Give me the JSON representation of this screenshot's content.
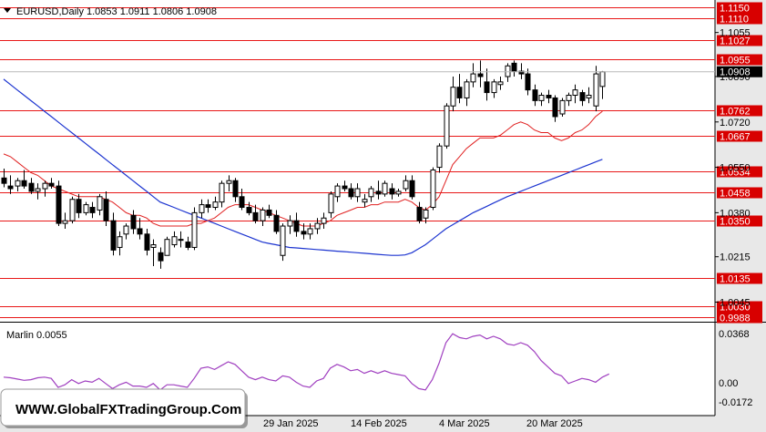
{
  "header": {
    "title": "EURUSD,Daily  1.0853 1.0911 1.0806 1.0908",
    "collapse_icon": "triangle-down-icon"
  },
  "price_axis": {
    "labels": [
      "1.1055",
      "1.0890",
      "1.0720",
      "1.0550",
      "1.0380",
      "1.0215",
      "1.0045"
    ],
    "current_price": "1.0908"
  },
  "levels": [
    {
      "label": "1.1150",
      "value": 1.115
    },
    {
      "label": "1.1110",
      "value": 1.111
    },
    {
      "label": "1.1027",
      "value": 1.1027
    },
    {
      "label": "1.0955",
      "value": 1.0955
    },
    {
      "label": "1.0762",
      "value": 1.0762
    },
    {
      "label": "1.0667",
      "value": 1.0667
    },
    {
      "label": "1.0534",
      "value": 1.0534
    },
    {
      "label": "1.0458",
      "value": 1.0458
    },
    {
      "label": "1.0350",
      "value": 1.035
    },
    {
      "label": "1.0135",
      "value": 1.0135
    },
    {
      "label": "1.0030",
      "value": 1.003
    },
    {
      "label": "0.9988",
      "value": 0.9988
    }
  ],
  "date_axis": {
    "labels": [
      "29 Jan 2025",
      "14 Feb 2025",
      "4 Mar 2025",
      "20 Mar 2025"
    ]
  },
  "indicator": {
    "title": "Marlin 0.0055",
    "axis_labels": [
      "0.0368",
      "0.00",
      "-0.0172"
    ]
  },
  "watermark": "WWW.GlobalFXTradingGroup.Com",
  "colors": {
    "background": "#ffffff",
    "axis_bg": "#e8e8e8",
    "level_line": "#e81818",
    "level_label_bg": "#d80000",
    "fast_ma": "#e02020",
    "slow_ma": "#1c34d0",
    "oscillator": "#a040c0",
    "candle": "#000000",
    "current_price_bg": "#000000"
  },
  "chart_data": {
    "type": "candlestick",
    "symbol": "EURUSD",
    "timeframe": "Daily",
    "last_bar": {
      "open": 1.0853,
      "high": 1.0911,
      "low": 1.0806,
      "close": 1.0908
    },
    "ylim": [
      0.9975,
      1.117
    ],
    "candles": [
      [
        1.051,
        1.0545,
        1.0475,
        1.049
      ],
      [
        1.048,
        1.052,
        1.045,
        1.047
      ],
      [
        1.048,
        1.051,
        1.046,
        1.05
      ],
      [
        1.05,
        1.054,
        1.047,
        1.048
      ],
      [
        1.049,
        1.051,
        1.045,
        1.046
      ],
      [
        1.046,
        1.049,
        1.043,
        1.047
      ],
      [
        1.047,
        1.05,
        1.044,
        1.049
      ],
      [
        1.049,
        1.051,
        1.047,
        1.048
      ],
      [
        1.048,
        1.05,
        1.033,
        1.034
      ],
      [
        1.034,
        1.038,
        1.032,
        1.035
      ],
      [
        1.035,
        1.044,
        1.034,
        1.043
      ],
      [
        1.043,
        1.045,
        1.036,
        1.038
      ],
      [
        1.038,
        1.042,
        1.037,
        1.041
      ],
      [
        1.04,
        1.042,
        1.036,
        1.038
      ],
      [
        1.039,
        1.045,
        1.037,
        1.044
      ],
      [
        1.043,
        1.046,
        1.033,
        1.035
      ],
      [
        1.035,
        1.038,
        1.022,
        1.024
      ],
      [
        1.025,
        1.031,
        1.022,
        1.029
      ],
      [
        1.03,
        1.034,
        1.028,
        1.033
      ],
      [
        1.037,
        1.039,
        1.03,
        1.032
      ],
      [
        1.032,
        1.036,
        1.028,
        1.03
      ],
      [
        1.03,
        1.032,
        1.022,
        1.024
      ],
      [
        1.025,
        1.028,
        1.018,
        1.026
      ],
      [
        1.023,
        1.025,
        1.017,
        1.02
      ],
      [
        1.022,
        1.029,
        1.022,
        1.028
      ],
      [
        1.026,
        1.031,
        1.025,
        1.029
      ],
      [
        1.028,
        1.031,
        1.025,
        1.028
      ],
      [
        1.027,
        1.029,
        1.024,
        1.025
      ],
      [
        1.025,
        1.04,
        1.024,
        1.038
      ],
      [
        1.038,
        1.043,
        1.036,
        1.041
      ],
      [
        1.041,
        1.043,
        1.038,
        1.04
      ],
      [
        1.04,
        1.044,
        1.039,
        1.042
      ],
      [
        1.042,
        1.05,
        1.04,
        1.049
      ],
      [
        1.049,
        1.052,
        1.046,
        1.05
      ],
      [
        1.05,
        1.051,
        1.042,
        1.044
      ],
      [
        1.044,
        1.047,
        1.039,
        1.04
      ],
      [
        1.04,
        1.042,
        1.037,
        1.038
      ],
      [
        1.038,
        1.041,
        1.034,
        1.035
      ],
      [
        1.035,
        1.04,
        1.033,
        1.039
      ],
      [
        1.039,
        1.041,
        1.036,
        1.037
      ],
      [
        1.037,
        1.039,
        1.03,
        1.031
      ],
      [
        1.022,
        1.034,
        1.02,
        1.033
      ],
      [
        1.033,
        1.037,
        1.03,
        1.035
      ],
      [
        1.035,
        1.038,
        1.029,
        1.031
      ],
      [
        1.031,
        1.034,
        1.028,
        1.03
      ],
      [
        1.03,
        1.034,
        1.028,
        1.032
      ],
      [
        1.032,
        1.036,
        1.03,
        1.034
      ],
      [
        1.034,
        1.038,
        1.032,
        1.036
      ],
      [
        1.038,
        1.046,
        1.036,
        1.045
      ],
      [
        1.044,
        1.049,
        1.042,
        1.048
      ],
      [
        1.048,
        1.05,
        1.046,
        1.047
      ],
      [
        1.047,
        1.049,
        1.043,
        1.044
      ],
      [
        1.044,
        1.049,
        1.042,
        1.047
      ],
      [
        1.042,
        1.045,
        1.04,
        1.043
      ],
      [
        1.044,
        1.048,
        1.042,
        1.047
      ],
      [
        1.046,
        1.05,
        1.043,
        1.045
      ],
      [
        1.045,
        1.05,
        1.044,
        1.049
      ],
      [
        1.047,
        1.049,
        1.043,
        1.045
      ],
      [
        1.045,
        1.047,
        1.044,
        1.046
      ],
      [
        1.047,
        1.052,
        1.046,
        1.05
      ],
      [
        1.05,
        1.052,
        1.043,
        1.044
      ],
      [
        1.04,
        1.042,
        1.034,
        1.035
      ],
      [
        1.036,
        1.04,
        1.034,
        1.039
      ],
      [
        1.04,
        1.055,
        1.039,
        1.054
      ],
      [
        1.055,
        1.064,
        1.053,
        1.063
      ],
      [
        1.063,
        1.079,
        1.062,
        1.078
      ],
      [
        1.078,
        1.089,
        1.076,
        1.085
      ],
      [
        1.085,
        1.09,
        1.079,
        1.081
      ],
      [
        1.081,
        1.088,
        1.078,
        1.087
      ],
      [
        1.087,
        1.094,
        1.085,
        1.09
      ],
      [
        1.09,
        1.095,
        1.085,
        1.089
      ],
      [
        1.087,
        1.092,
        1.08,
        1.083
      ],
      [
        1.083,
        1.088,
        1.081,
        1.087
      ],
      [
        1.086,
        1.089,
        1.084,
        1.087
      ],
      [
        1.089,
        1.094,
        1.087,
        1.093
      ],
      [
        1.094,
        1.095,
        1.089,
        1.091
      ],
      [
        1.091,
        1.094,
        1.088,
        1.09
      ],
      [
        1.09,
        1.092,
        1.082,
        1.084
      ],
      [
        1.084,
        1.086,
        1.078,
        1.08
      ],
      [
        1.08,
        1.083,
        1.078,
        1.082
      ],
      [
        1.082,
        1.084,
        1.079,
        1.081
      ],
      [
        1.081,
        1.082,
        1.072,
        1.074
      ],
      [
        1.075,
        1.081,
        1.074,
        1.08
      ],
      [
        1.08,
        1.083,
        1.078,
        1.082
      ],
      [
        1.082,
        1.086,
        1.079,
        1.084
      ],
      [
        1.083,
        1.084,
        1.078,
        1.08
      ],
      [
        1.081,
        1.085,
        1.079,
        1.082
      ],
      [
        1.078,
        1.093,
        1.076,
        1.09
      ],
      [
        1.0853,
        1.0911,
        1.0806,
        1.0908
      ]
    ],
    "ma_fast": [
      1.06,
      1.059,
      1.057,
      1.055,
      1.053,
      1.052,
      1.05,
      1.048,
      1.047,
      1.046,
      1.045,
      1.044,
      1.044,
      1.044,
      1.044,
      1.043,
      1.042,
      1.04,
      1.038,
      1.037,
      1.037,
      1.036,
      1.034,
      1.033,
      1.033,
      1.033,
      1.033,
      1.033,
      1.034,
      1.034,
      1.035,
      1.036,
      1.038,
      1.04,
      1.041,
      1.041,
      1.041,
      1.04,
      1.039,
      1.038,
      1.037,
      1.036,
      1.035,
      1.034,
      1.033,
      1.033,
      1.033,
      1.034,
      1.035,
      1.037,
      1.038,
      1.039,
      1.04,
      1.04,
      1.041,
      1.041,
      1.042,
      1.042,
      1.042,
      1.043,
      1.042,
      1.04,
      1.039,
      1.041,
      1.044,
      1.05,
      1.056,
      1.059,
      1.062,
      1.064,
      1.066,
      1.066,
      1.066,
      1.067,
      1.069,
      1.071,
      1.072,
      1.071,
      1.069,
      1.068,
      1.068,
      1.066,
      1.065,
      1.066,
      1.068,
      1.069,
      1.071,
      1.074,
      1.076
    ],
    "ma_slow": [
      1.088,
      1.086,
      1.084,
      1.082,
      1.08,
      1.078,
      1.076,
      1.074,
      1.072,
      1.07,
      1.068,
      1.066,
      1.064,
      1.062,
      1.06,
      1.058,
      1.056,
      1.054,
      1.052,
      1.05,
      1.048,
      1.046,
      1.044,
      1.042,
      1.041,
      1.04,
      1.039,
      1.038,
      1.037,
      1.036,
      1.035,
      1.034,
      1.033,
      1.032,
      1.031,
      1.03,
      1.029,
      1.028,
      1.027,
      1.0265,
      1.026,
      1.0255,
      1.025,
      1.0248,
      1.0246,
      1.0244,
      1.0242,
      1.024,
      1.0238,
      1.0236,
      1.0234,
      1.0232,
      1.023,
      1.0228,
      1.0226,
      1.0224,
      1.0222,
      1.022,
      1.022,
      1.0222,
      1.023,
      1.0245,
      1.026,
      1.028,
      1.03,
      1.032,
      1.0335,
      1.035,
      1.0365,
      1.038,
      1.0392,
      1.0404,
      1.0416,
      1.0428,
      1.044,
      1.045,
      1.046,
      1.047,
      1.048,
      1.049,
      1.05,
      1.051,
      1.052,
      1.053,
      1.054,
      1.055,
      1.056,
      1.057,
      1.058
    ],
    "oscillator": {
      "name": "Marlin",
      "last_value": 0.0055,
      "ylim": [
        -0.02,
        0.04
      ],
      "values": [
        0.003,
        0.0025,
        0.0015,
        0.0005,
        0.001,
        0.0025,
        0.003,
        0.002,
        -0.005,
        -0.003,
        0.001,
        -0.002,
        0.0,
        -0.001,
        0.002,
        -0.002,
        -0.006,
        -0.003,
        -0.001,
        -0.004,
        -0.004,
        -0.005,
        -0.002,
        -0.007,
        -0.003,
        -0.003,
        -0.004,
        -0.005,
        0.002,
        0.01,
        0.011,
        0.009,
        0.012,
        0.015,
        0.013,
        0.008,
        0.003,
        0.001,
        0.003,
        0.001,
        0.0,
        0.004,
        0.003,
        -0.001,
        -0.004,
        -0.005,
        0.0,
        0.002,
        0.01,
        0.013,
        0.011,
        0.008,
        0.009,
        0.006,
        0.008,
        0.006,
        0.008,
        0.006,
        0.005,
        0.004,
        -0.002,
        -0.006,
        -0.007,
        0.001,
        0.014,
        0.03,
        0.037,
        0.034,
        0.033,
        0.035,
        0.036,
        0.033,
        0.035,
        0.033,
        0.029,
        0.028,
        0.03,
        0.028,
        0.023,
        0.016,
        0.011,
        0.006,
        0.004,
        -0.002,
        0.0,
        0.002,
        0.001,
        -0.001,
        0.003,
        0.0055
      ]
    }
  }
}
